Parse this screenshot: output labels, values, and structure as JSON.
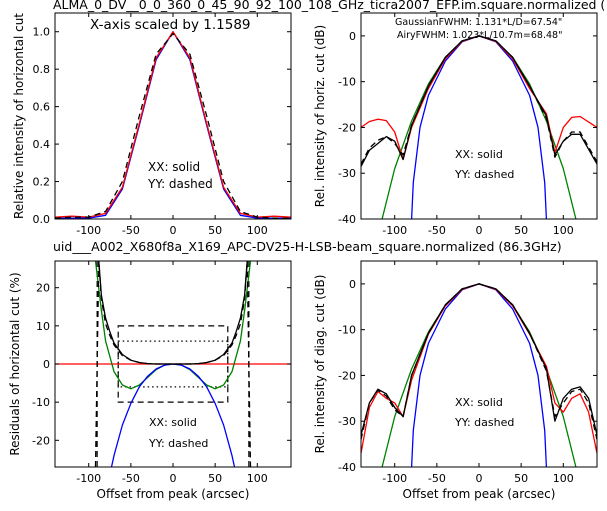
{
  "figure": {
    "top_title": "ALMA_0_DV__0_0_360_0_45_90_92_100_108_GHz_ticra2007_EFP.im.square.normalized (",
    "mid_title": "uid___A002_X680f8a_X169_APC-DV25-H-LSB-beam_square.normalized (86.3GHz)",
    "mid_title_color": "#ff0000"
  },
  "colors": {
    "xx_measured": "#000000",
    "yy_measured": "#000000",
    "model_a": "#0000ff",
    "model_b": "#ff0000",
    "gaussian": "#008000",
    "airy": "#0000ff",
    "box_dashed": "#000000",
    "box_dotted": "#000000"
  },
  "chart_data": [
    {
      "id": "tl",
      "type": "line",
      "ylabel": "Relative intensity of horizontal cut",
      "xlabel": "",
      "xlim": [
        -140,
        140
      ],
      "ylim": [
        0,
        1.1
      ],
      "xticks": [
        -100,
        -50,
        0,
        50,
        100
      ],
      "yticks": [
        0.0,
        0.2,
        0.4,
        0.6,
        0.8,
        1.0
      ],
      "ytick_labels": [
        "0.0",
        "0.2",
        "0.4",
        "0.6",
        "0.8",
        "1.0"
      ],
      "annotations": [
        "X-axis scaled by 1.1589",
        "XX: solid",
        "YY: dashed"
      ],
      "series": [
        {
          "color": "blue",
          "style": "solid",
          "x": [
            -140,
            -120,
            -100,
            -80,
            -60,
            -40,
            -20,
            0,
            20,
            40,
            60,
            80,
            100,
            120,
            140
          ],
          "y": [
            0.005,
            0.005,
            0.005,
            0.02,
            0.16,
            0.5,
            0.85,
            1.0,
            0.85,
            0.5,
            0.16,
            0.02,
            0.005,
            0.005,
            0.005
          ]
        },
        {
          "color": "red",
          "style": "solid",
          "x": [
            -140,
            -120,
            -100,
            -80,
            -60,
            -40,
            -20,
            0,
            20,
            40,
            60,
            80,
            100,
            120,
            140
          ],
          "y": [
            0.01,
            0.015,
            0.01,
            0.03,
            0.17,
            0.51,
            0.86,
            1.0,
            0.86,
            0.51,
            0.17,
            0.03,
            0.01,
            0.015,
            0.01
          ]
        },
        {
          "color": "black",
          "style": "dashed",
          "x": [
            -140,
            -120,
            -100,
            -80,
            -60,
            -40,
            -20,
            0,
            20,
            40,
            60,
            80,
            100,
            120,
            140
          ],
          "y": [
            0.005,
            0.01,
            0.01,
            0.04,
            0.2,
            0.55,
            0.88,
            0.99,
            0.88,
            0.55,
            0.2,
            0.04,
            0.01,
            0.005,
            0.005
          ]
        }
      ]
    },
    {
      "id": "tr",
      "type": "line",
      "ylabel": "Rel. intensity of horiz. cut (dB)",
      "xlabel": "",
      "xlim": [
        -140,
        140
      ],
      "ylim": [
        -40,
        5
      ],
      "xticks": [
        -100,
        -50,
        0,
        50,
        100
      ],
      "yticks": [
        0,
        -10,
        -20,
        -30,
        -40
      ],
      "annotations": [
        "GaussianFWHM: 1.131*L/D=67.54\"",
        "AiryFWHM: 1.023*L/10.7m=68.48\"",
        "XX: solid",
        "YY: dashed"
      ],
      "series": [
        {
          "name": "GaussianFWHM",
          "color": "green",
          "style": "solid",
          "x": [
            -115,
            -100,
            -80,
            -60,
            -40,
            -20,
            0,
            20,
            40,
            60,
            80,
            100,
            115
          ],
          "y": [
            -40,
            -29,
            -18.6,
            -10.5,
            -4.7,
            -1.2,
            0,
            -1.2,
            -4.7,
            -10.5,
            -18.6,
            -29,
            -40
          ]
        },
        {
          "name": "AiryFWHM",
          "color": "blue",
          "style": "solid",
          "x": [
            -80,
            -78,
            -70,
            -60,
            -40,
            -20,
            0,
            20,
            40,
            60,
            70,
            78,
            80
          ],
          "y": [
            -40,
            -32,
            -20,
            -13,
            -5.5,
            -1.3,
            0,
            -1.3,
            -5.5,
            -13,
            -20,
            -32,
            -40
          ]
        },
        {
          "color": "red",
          "style": "solid",
          "x": [
            -140,
            -130,
            -120,
            -110,
            -100,
            -90,
            -80,
            -60,
            -40,
            -20,
            0,
            20,
            40,
            60,
            80,
            90,
            100,
            110,
            120,
            140
          ],
          "y": [
            -20,
            -18.7,
            -18.2,
            -18.5,
            -21,
            -27,
            -20,
            -11.5,
            -5,
            -1.2,
            0,
            -1.2,
            -5,
            -11.5,
            -17,
            -25.5,
            -20,
            -17.8,
            -17.6,
            -20
          ]
        },
        {
          "color": "black",
          "style": "solid",
          "x": [
            -140,
            -130,
            -120,
            -110,
            -100,
            -90,
            -80,
            -60,
            -40,
            -20,
            0,
            20,
            40,
            60,
            80,
            90,
            100,
            110,
            120,
            140
          ],
          "y": [
            -28.5,
            -25,
            -23.5,
            -22,
            -23,
            -27,
            -19.5,
            -11,
            -4.7,
            -1.1,
            0,
            -1.1,
            -4.7,
            -11,
            -17.5,
            -26,
            -23,
            -21.5,
            -21.5,
            -28
          ]
        },
        {
          "color": "black",
          "style": "dashed",
          "x": [
            -140,
            -130,
            -120,
            -110,
            -100,
            -90,
            -80,
            -60,
            -40,
            -20,
            0,
            20,
            40,
            60,
            80,
            90,
            100,
            110,
            120,
            140
          ],
          "y": [
            -28,
            -24.5,
            -22.8,
            -22,
            -23.5,
            -26,
            -19.5,
            -11,
            -4.7,
            -1.1,
            0,
            -1.1,
            -4.7,
            -11,
            -18,
            -26.5,
            -23,
            -21,
            -21,
            -27.5
          ]
        }
      ]
    },
    {
      "id": "bl",
      "type": "line",
      "ylabel": "Residuals of horizontal cut (%)",
      "xlabel": "Offset from peak (arcsec)",
      "xlim": [
        -140,
        140
      ],
      "ylim": [
        -27,
        27
      ],
      "xticks": [
        -100,
        -50,
        0,
        50,
        100
      ],
      "yticks": [
        20,
        10,
        0,
        -10,
        -20
      ],
      "annotations": [
        "XX: solid",
        "YY: dashed"
      ],
      "series": [
        {
          "color": "red",
          "style": "solid",
          "x": [
            -140,
            140
          ],
          "y": [
            0,
            0
          ]
        },
        {
          "color": "green",
          "style": "solid",
          "x": [
            -92,
            -85,
            -80,
            -70,
            -60,
            -50,
            -40,
            -30,
            -20,
            -10,
            0,
            10,
            20,
            30,
            40,
            50,
            60,
            70,
            80,
            85,
            92
          ],
          "y": [
            27,
            14,
            6,
            -2,
            -5.5,
            -6.5,
            -5.5,
            -3.5,
            -1.5,
            -0.3,
            0,
            -0.3,
            -1.5,
            -3.5,
            -5.5,
            -6.5,
            -5.5,
            -2,
            6,
            14,
            27
          ]
        },
        {
          "color": "blue",
          "style": "solid",
          "x": [
            -73,
            -70,
            -60,
            -50,
            -40,
            -30,
            -20,
            -10,
            0,
            10,
            20,
            30,
            40,
            50,
            60,
            70,
            73
          ],
          "y": [
            -27,
            -24,
            -16,
            -10.3,
            -6,
            -3.2,
            -1.3,
            -0.3,
            0,
            -0.3,
            -1.3,
            -3.2,
            -6,
            -10.3,
            -16,
            -24,
            -27
          ]
        },
        {
          "color": "black",
          "style": "solid",
          "x": [
            -88,
            -85,
            -80,
            -75,
            -70,
            -60,
            -50,
            -40,
            -30,
            -20,
            -10,
            0,
            10,
            20,
            30,
            40,
            50,
            60,
            70,
            75,
            80,
            85,
            88
          ],
          "y": [
            27,
            18,
            12,
            8.5,
            5.5,
            2.5,
            1.0,
            0.4,
            0.1,
            0.0,
            0.0,
            0.0,
            0.0,
            0.0,
            0.1,
            0.4,
            1.0,
            2.5,
            5.5,
            8.5,
            12,
            18,
            27
          ]
        },
        {
          "color": "black",
          "style": "dashed",
          "x": [
            -92,
            -88,
            -85,
            -80,
            -75,
            -70,
            -60,
            -50,
            -40,
            -30,
            -20,
            -10,
            0,
            10,
            20,
            30,
            40,
            50,
            60,
            70,
            75,
            80,
            85,
            88,
            92
          ],
          "y": [
            -27,
            27,
            17,
            10.5,
            7.5,
            5,
            2.2,
            1.0,
            0.4,
            0.1,
            0.0,
            0.0,
            0.0,
            0.0,
            0.0,
            0.1,
            0.4,
            1.0,
            2.2,
            5,
            7.5,
            10.5,
            17,
            27,
            -27
          ]
        }
      ],
      "boxes": [
        {
          "style": "dashed",
          "x": [
            -65,
            65
          ],
          "y": [
            -10,
            10
          ]
        },
        {
          "style": "dotted",
          "x": [
            -65,
            65
          ],
          "y": [
            -6,
            6
          ]
        }
      ],
      "vlines_dashed": [
        -90,
        90
      ]
    },
    {
      "id": "br",
      "type": "line",
      "ylabel": "Rel. intensity of diag. cut (dB)",
      "xlabel": "Offset from peak (arcsec)",
      "xlim": [
        -140,
        140
      ],
      "ylim": [
        -40,
        5
      ],
      "xticks": [
        -100,
        -50,
        0,
        50,
        100
      ],
      "yticks": [
        0,
        -10,
        -20,
        -30,
        -40
      ],
      "annotations": [
        "XX: solid",
        "YY: dashed"
      ],
      "series": [
        {
          "color": "green",
          "style": "solid",
          "x": [
            -115,
            -100,
            -80,
            -60,
            -40,
            -20,
            0,
            20,
            40,
            60,
            80,
            100,
            115
          ],
          "y": [
            -40,
            -29,
            -18.6,
            -10.5,
            -4.7,
            -1.2,
            0,
            -1.2,
            -4.7,
            -10.5,
            -18.6,
            -29,
            -40
          ]
        },
        {
          "color": "blue",
          "style": "solid",
          "x": [
            -80,
            -78,
            -70,
            -60,
            -40,
            -20,
            0,
            20,
            40,
            60,
            70,
            78,
            80
          ],
          "y": [
            -40,
            -32,
            -20,
            -13,
            -5.5,
            -1.3,
            0,
            -1.3,
            -5.5,
            -13,
            -20,
            -32,
            -40
          ]
        },
        {
          "color": "red",
          "style": "solid",
          "x": [
            -140,
            -130,
            -120,
            -110,
            -100,
            -90,
            -80,
            -60,
            -40,
            -20,
            0,
            20,
            40,
            60,
            80,
            90,
            100,
            110,
            120,
            130,
            140
          ],
          "y": [
            -37,
            -27,
            -23.5,
            -25,
            -26,
            -29,
            -21,
            -11,
            -4.8,
            -1.2,
            0,
            -1.2,
            -4.8,
            -11,
            -18,
            -26,
            -28,
            -25,
            -24,
            -28,
            -37
          ]
        },
        {
          "color": "black",
          "style": "solid",
          "x": [
            -140,
            -130,
            -120,
            -110,
            -100,
            -90,
            -80,
            -60,
            -40,
            -20,
            0,
            20,
            40,
            60,
            80,
            90,
            100,
            110,
            120,
            130,
            140
          ],
          "y": [
            -33,
            -26,
            -23,
            -24,
            -27,
            -29,
            -20,
            -10.8,
            -4.6,
            -1.1,
            0,
            -1.1,
            -4.6,
            -10.8,
            -18.5,
            -30,
            -25,
            -23,
            -22.5,
            -25,
            -33
          ]
        },
        {
          "color": "black",
          "style": "dashed",
          "x": [
            -140,
            -130,
            -120,
            -110,
            -100,
            -90,
            -80,
            -60,
            -40,
            -20,
            0,
            20,
            40,
            60,
            80,
            90,
            100,
            110,
            120,
            130,
            140
          ],
          "y": [
            -34,
            -26,
            -23.2,
            -24.5,
            -27.5,
            -29,
            -20,
            -10.8,
            -4.6,
            -1.1,
            0,
            -1.1,
            -4.6,
            -10.8,
            -19,
            -29,
            -26,
            -23.5,
            -23,
            -26,
            -34
          ]
        }
      ]
    }
  ]
}
